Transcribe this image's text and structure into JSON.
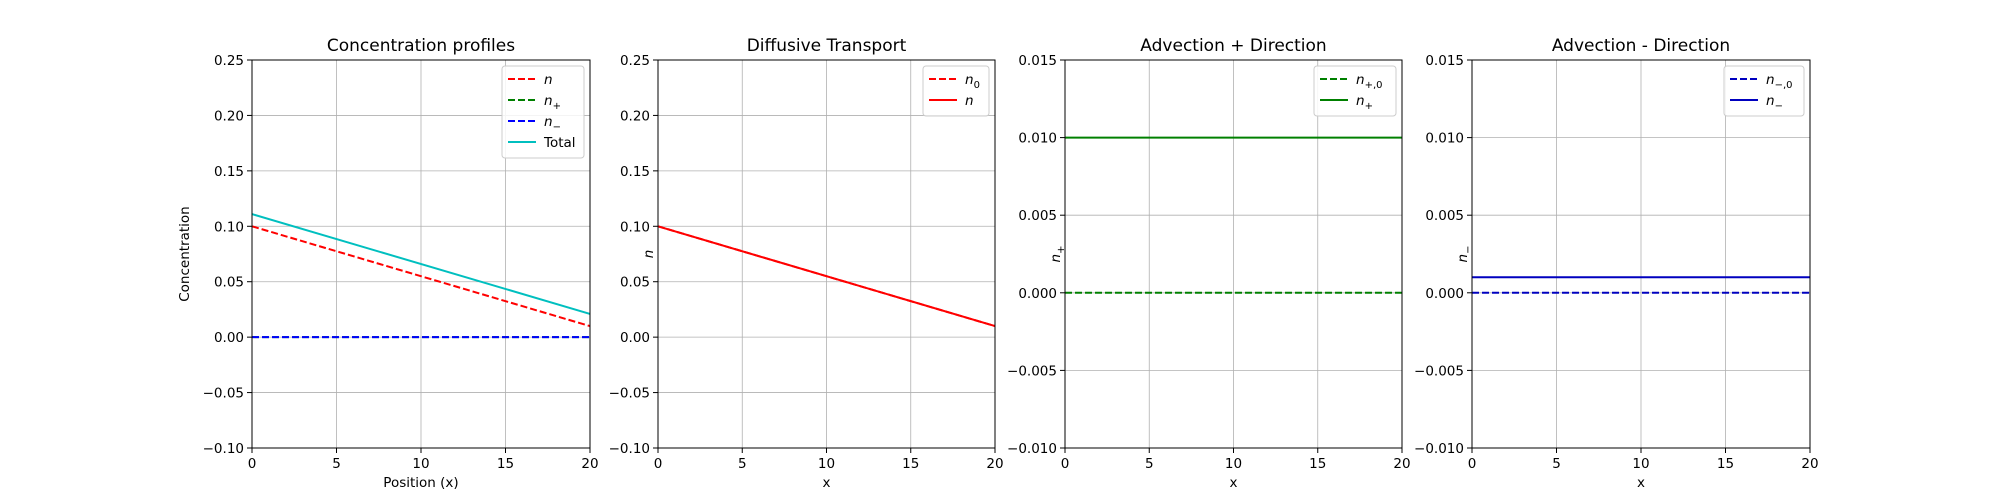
{
  "chart_data": [
    {
      "type": "line",
      "title": "Concentration profiles",
      "xlabel": "Position (x)",
      "ylabel": "Concentration",
      "xlim": [
        0,
        20
      ],
      "ylim": [
        -0.1,
        0.25
      ],
      "xticks": [
        0,
        5,
        10,
        15,
        20
      ],
      "yticks": [
        -0.1,
        -0.05,
        0.0,
        0.05,
        0.1,
        0.15,
        0.2,
        0.25
      ],
      "ytick_labels": [
        "−0.10",
        "−0.05",
        "0.00",
        "0.05",
        "0.10",
        "0.15",
        "0.20",
        "0.25"
      ],
      "grid": true,
      "legend_position": "top-right",
      "series": [
        {
          "name": "n",
          "color": "#ff0000",
          "dash": "dashed",
          "x": [
            0,
            20
          ],
          "y": [
            0.1,
            0.01
          ]
        },
        {
          "name": "n+",
          "color": "#008000",
          "dash": "dashed",
          "x": [
            0,
            20
          ],
          "y": [
            0.0,
            0.0
          ]
        },
        {
          "name": "n−",
          "color": "#0000ff",
          "dash": "dashed",
          "x": [
            0,
            20
          ],
          "y": [
            0.0,
            0.0
          ]
        },
        {
          "name": "Total",
          "color": "#00bfbf",
          "dash": "solid",
          "x": [
            0,
            20
          ],
          "y": [
            0.111,
            0.021
          ]
        }
      ]
    },
    {
      "type": "line",
      "title": "Diffusive Transport",
      "xlabel": "x",
      "ylabel": "n",
      "xlim": [
        0,
        20
      ],
      "ylim": [
        -0.1,
        0.25
      ],
      "xticks": [
        0,
        5,
        10,
        15,
        20
      ],
      "yticks": [
        -0.1,
        -0.05,
        0.0,
        0.05,
        0.1,
        0.15,
        0.2,
        0.25
      ],
      "ytick_labels": [
        "−0.10",
        "−0.05",
        "0.00",
        "0.05",
        "0.10",
        "0.15",
        "0.20",
        "0.25"
      ],
      "grid": true,
      "legend_position": "top-right",
      "series": [
        {
          "name": "n0",
          "color": "#ff0000",
          "dash": "dashed",
          "x": [
            0,
            20
          ],
          "y": [
            0.1,
            0.01
          ]
        },
        {
          "name": "n",
          "color": "#ff0000",
          "dash": "solid",
          "x": [
            0,
            20
          ],
          "y": [
            0.1,
            0.01
          ]
        }
      ]
    },
    {
      "type": "line",
      "title": "Advection + Direction",
      "xlabel": "x",
      "ylabel": "n+",
      "xlim": [
        0,
        20
      ],
      "ylim": [
        -0.01,
        0.015
      ],
      "xticks": [
        0,
        5,
        10,
        15,
        20
      ],
      "yticks": [
        -0.01,
        -0.005,
        0.0,
        0.005,
        0.01,
        0.015
      ],
      "ytick_labels": [
        "−0.010",
        "−0.005",
        "0.000",
        "0.005",
        "0.010",
        "0.015"
      ],
      "grid": true,
      "legend_position": "top-right",
      "series": [
        {
          "name": "n+,0",
          "color": "#008000",
          "dash": "dashed",
          "x": [
            0,
            20
          ],
          "y": [
            0.0,
            0.0
          ]
        },
        {
          "name": "n+",
          "color": "#008000",
          "dash": "solid",
          "x": [
            0,
            20
          ],
          "y": [
            0.01,
            0.01
          ]
        }
      ]
    },
    {
      "type": "line",
      "title": "Advection - Direction",
      "xlabel": "x",
      "ylabel": "n−",
      "xlim": [
        0,
        20
      ],
      "ylim": [
        -0.01,
        0.015
      ],
      "xticks": [
        0,
        5,
        10,
        15,
        20
      ],
      "yticks": [
        -0.01,
        -0.005,
        0.0,
        0.005,
        0.01,
        0.015
      ],
      "ytick_labels": [
        "−0.010",
        "−0.005",
        "0.000",
        "0.005",
        "0.010",
        "0.015"
      ],
      "grid": true,
      "legend_position": "top-right",
      "series": [
        {
          "name": "n−,0",
          "color": "#0000bf",
          "dash": "dashed",
          "x": [
            0,
            20
          ],
          "y": [
            0.0,
            0.0
          ]
        },
        {
          "name": "n−",
          "color": "#0000bf",
          "dash": "solid",
          "x": [
            0,
            20
          ],
          "y": [
            0.001,
            0.001
          ]
        }
      ]
    }
  ]
}
